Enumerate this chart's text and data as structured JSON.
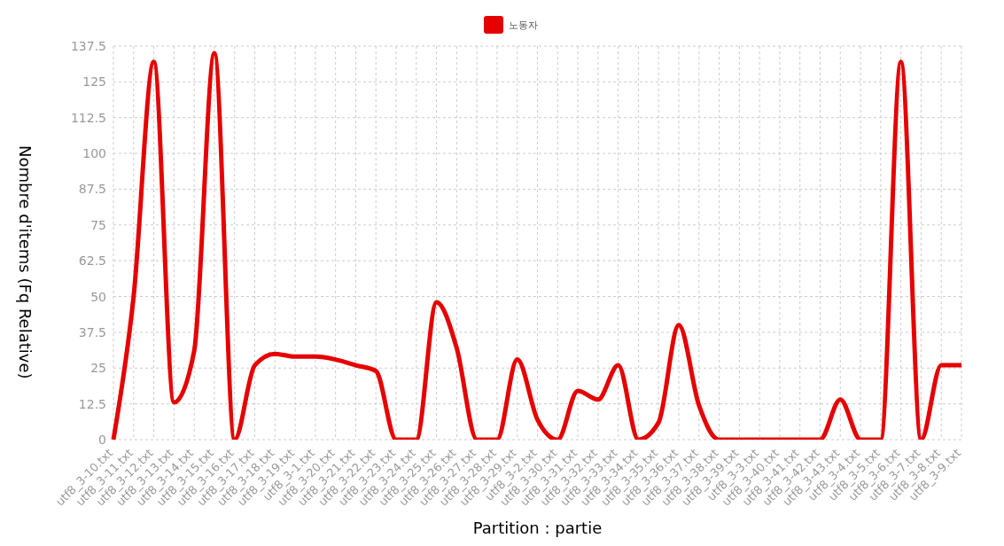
{
  "chart_data": {
    "type": "line",
    "xlabel": "Partition : partie",
    "ylabel": "Nombre d'items (Fq Relative)",
    "categories": [
      "utf8_3-10.txt",
      "utf8_3-11.txt",
      "utf8_3-12.txt",
      "utf8_3-13.txt",
      "utf8_3-14.txt",
      "utf8_3-15.txt",
      "utf8_3-16.txt",
      "utf8_3-17.txt",
      "utf8_3-18.txt",
      "utf8_3-19.txt",
      "utf8_3-1.txt",
      "utf8_3-20.txt",
      "utf8_3-21.txt",
      "utf8_3-22.txt",
      "utf8_3-23.txt",
      "utf8_3-24.txt",
      "utf8_3-25.txt",
      "utf8_3-26.txt",
      "utf8_3-27.txt",
      "utf8_3-28.txt",
      "utf8_3-29.txt",
      "utf8_3-2.txt",
      "utf8_3-30.txt",
      "utf8_3-31.txt",
      "utf8_3-32.txt",
      "utf8_3-33.txt",
      "utf8_3-34.txt",
      "utf8_3-35.txt",
      "utf8_3-36.txt",
      "utf8_3-37.txt",
      "utf8_3-38.txt",
      "utf8_3-39.txt",
      "utf8_3-3.txt",
      "utf8_3-40.txt",
      "utf8_3-41.txt",
      "utf8_3-42.txt",
      "utf8_3-43.txt",
      "utf8_3-4.txt",
      "utf8_3-5.txt",
      "utf8_3-6.txt",
      "utf8_3-7.txt",
      "utf8_3-8.txt",
      "utf8_3-9.txt"
    ],
    "series": [
      {
        "name": "노동자",
        "color": "#e60000",
        "values": [
          0,
          50,
          132,
          13,
          31,
          135,
          0,
          26,
          30,
          29,
          29,
          28,
          26,
          24,
          0,
          0,
          48,
          32,
          0,
          0,
          28,
          7,
          0,
          17,
          14,
          26,
          0,
          6,
          40,
          12,
          0,
          0,
          0,
          0,
          0,
          0,
          14,
          0,
          0,
          132,
          0,
          26,
          26
        ]
      }
    ],
    "ylim": [
      0,
      137.5
    ],
    "yticks": [
      0,
      12.5,
      25,
      37.5,
      50,
      62.5,
      75,
      87.5,
      100,
      112.5,
      125,
      137.5
    ],
    "grid": true,
    "legend": "top",
    "marker": "none",
    "line_style": "solid"
  }
}
